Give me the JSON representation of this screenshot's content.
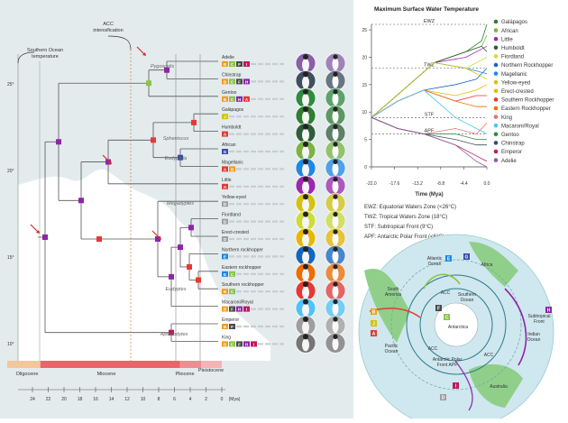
{
  "tree": {
    "y_ticks": [
      "25",
      "20",
      "15",
      "10"
    ],
    "southern_ocean_label": [
      "Southern Ocean",
      "temperature"
    ],
    "acc_label": [
      "ACC",
      "intensification"
    ],
    "genera": [
      "Pygoscelis",
      "Spheniscus",
      "Eudyptula",
      "Megadyptes",
      "Eudyptes",
      "Aptenodytes"
    ],
    "species": [
      {
        "name": "Adelie",
        "color": "#8a5fa8",
        "area": [
          "B",
          "C",
          "F",
          "I"
        ]
      },
      {
        "name": "Chinstrap",
        "color": "#3f4f5f",
        "area": [
          "B",
          "C",
          "F",
          "H"
        ]
      },
      {
        "name": "Gentoo",
        "color": "#2e8b3f",
        "area": [
          "B",
          "C",
          "H",
          "A"
        ]
      },
      {
        "name": "Galápagos",
        "color": "#2e7d32",
        "area": [
          "J"
        ]
      },
      {
        "name": "Humboldt",
        "color": "#2f5e3a",
        "area": [
          "A"
        ]
      },
      {
        "name": "African",
        "color": "#7cb342",
        "area": [
          "G"
        ]
      },
      {
        "name": "Magellanic",
        "color": "#1e88e5",
        "area": [
          "A",
          "B"
        ]
      },
      {
        "name": "Little",
        "color": "#9c27b0",
        "area": [
          "A"
        ]
      },
      {
        "name": "Yellow-eyed",
        "color": "#d4c20f",
        "area": [
          "D"
        ]
      },
      {
        "name": "Fiordland",
        "color": "#cddc39",
        "area": [
          "D"
        ]
      },
      {
        "name": "Erect-crested",
        "color": "#e6b800",
        "area": [
          "D"
        ]
      },
      {
        "name": "Northern rockhopper",
        "color": "#1565c0",
        "area": [
          "E"
        ]
      },
      {
        "name": "Eastern rockhopper",
        "color": "#ef6c00",
        "area": [
          "E",
          "C"
        ]
      },
      {
        "name": "Southern rockhopper",
        "color": "#e53935",
        "area": [
          "B",
          "C"
        ]
      },
      {
        "name": "Macaroni/Royal",
        "color": "#4fc3f7",
        "area": [
          "B",
          "F",
          "H",
          "I"
        ]
      },
      {
        "name": "Emperor",
        "color": "#9e9e9e",
        "area": [
          "B",
          "F"
        ]
      },
      {
        "name": "King",
        "color": "#757575",
        "area": [
          "B",
          "C",
          "F",
          "H",
          "I"
        ]
      }
    ],
    "epochs": [
      "Oligocene",
      "Miocene",
      "Pliocene",
      "Pleistocene"
    ],
    "time_ticks": [
      "24",
      "22",
      "20",
      "18",
      "16",
      "14",
      "12",
      "10",
      "8",
      "6",
      "4",
      "2",
      "0"
    ],
    "time_unit": "(Mya)"
  },
  "chart_data": {
    "type": "line",
    "title": "Maximum Surface Water Temperature",
    "xlabel": "Time (Mya)",
    "ylabel": "",
    "x_ticks": [
      "-22.0",
      "-17.6",
      "-13.2",
      "-8.8",
      "-4.4",
      "0.0"
    ],
    "xlim": [
      -22,
      0
    ],
    "ylim": [
      0,
      26
    ],
    "y_ticks": [
      0,
      5,
      10,
      15,
      20,
      25
    ],
    "reference_lines": [
      {
        "label": "EWZ",
        "value": 26
      },
      {
        "label": "TWZ",
        "value": 18
      },
      {
        "label": "STF",
        "value": 9
      },
      {
        "label": "APF",
        "value": 6
      }
    ],
    "series": [
      {
        "name": "Galápagos",
        "color": "#2e7d32",
        "points": [
          [
            -22,
            9
          ],
          [
            -16,
            14
          ],
          [
            -10,
            19
          ],
          [
            -4,
            21
          ],
          [
            -1,
            23
          ],
          [
            0,
            26
          ]
        ]
      },
      {
        "name": "African",
        "color": "#7cb342",
        "points": [
          [
            -22,
            9
          ],
          [
            -16,
            14
          ],
          [
            -10,
            19
          ],
          [
            -4,
            21
          ],
          [
            -1,
            22
          ],
          [
            0,
            24
          ]
        ]
      },
      {
        "name": "Little",
        "color": "#9c27b0",
        "points": [
          [
            -22,
            9
          ],
          [
            -16,
            14
          ],
          [
            -10,
            19
          ],
          [
            -4,
            20
          ],
          [
            0,
            22
          ]
        ]
      },
      {
        "name": "Humboldt",
        "color": "#2f5e3a",
        "points": [
          [
            -22,
            9
          ],
          [
            -16,
            14
          ],
          [
            -10,
            19
          ],
          [
            -4,
            21
          ],
          [
            -1,
            22
          ],
          [
            0,
            21
          ]
        ]
      },
      {
        "name": "Fiordland",
        "color": "#cddc39",
        "points": [
          [
            -22,
            9
          ],
          [
            -16,
            14
          ],
          [
            -10,
            19
          ],
          [
            -4,
            18
          ],
          [
            0,
            20
          ]
        ]
      },
      {
        "name": "Northern Rockhopper",
        "color": "#1565c0",
        "points": [
          [
            -22,
            9
          ],
          [
            -17,
            12
          ],
          [
            -12,
            14
          ],
          [
            -6,
            15
          ],
          [
            -2,
            16
          ],
          [
            0,
            18
          ]
        ]
      },
      {
        "name": "Magellanic",
        "color": "#1e88e5",
        "points": [
          [
            -22,
            9
          ],
          [
            -16,
            14
          ],
          [
            -10,
            19
          ],
          [
            -4,
            18
          ],
          [
            0,
            17
          ]
        ]
      },
      {
        "name": "Yellow-eyed",
        "color": "#d4c20f",
        "points": [
          [
            -22,
            9
          ],
          [
            -16,
            14
          ],
          [
            -10,
            19
          ],
          [
            -4,
            18
          ],
          [
            0,
            16
          ]
        ]
      },
      {
        "name": "Erect-crested",
        "color": "#e6b800",
        "points": [
          [
            -22,
            9
          ],
          [
            -17,
            12
          ],
          [
            -12,
            14
          ],
          [
            -6,
            13
          ],
          [
            -2,
            14
          ],
          [
            0,
            15
          ]
        ]
      },
      {
        "name": "Southern Rockhopper",
        "color": "#e53935",
        "points": [
          [
            -22,
            9
          ],
          [
            -17,
            12
          ],
          [
            -12,
            14
          ],
          [
            -6,
            12
          ],
          [
            -2,
            13
          ],
          [
            0,
            13
          ]
        ]
      },
      {
        "name": "Eastern Rockhopper",
        "color": "#ef6c00",
        "points": [
          [
            -22,
            9
          ],
          [
            -17,
            12
          ],
          [
            -12,
            14
          ],
          [
            -6,
            12
          ],
          [
            -2,
            11
          ],
          [
            0,
            11
          ]
        ]
      },
      {
        "name": "King",
        "color": "#e57373",
        "points": [
          [
            -22,
            9
          ],
          [
            -17,
            7
          ],
          [
            -12,
            6
          ],
          [
            -6,
            7
          ],
          [
            -2,
            6
          ],
          [
            0,
            8
          ]
        ]
      },
      {
        "name": "Macaroni/Royal",
        "color": "#4fc3f7",
        "points": [
          [
            -22,
            9
          ],
          [
            -17,
            12
          ],
          [
            -12,
            14
          ],
          [
            -6,
            9
          ],
          [
            -2,
            7
          ],
          [
            0,
            6
          ]
        ]
      },
      {
        "name": "Gentoo",
        "color": "#2e8b3f",
        "points": [
          [
            -22,
            9
          ],
          [
            -17,
            7
          ],
          [
            -12,
            6
          ],
          [
            -6,
            6
          ],
          [
            -2,
            5
          ],
          [
            0,
            5
          ]
        ]
      },
      {
        "name": "Chinstrap",
        "color": "#3f4f5f",
        "points": [
          [
            -22,
            9
          ],
          [
            -17,
            7
          ],
          [
            -12,
            6
          ],
          [
            -6,
            5
          ],
          [
            -2,
            4
          ],
          [
            0,
            4
          ]
        ]
      },
      {
        "name": "Emperor",
        "color": "#c2185b",
        "points": [
          [
            -22,
            9
          ],
          [
            -17,
            7
          ],
          [
            -12,
            6
          ],
          [
            -6,
            4
          ],
          [
            -2,
            2
          ],
          [
            0,
            1
          ]
        ]
      },
      {
        "name": "Adelie",
        "color": "#8a5fa8",
        "points": [
          [
            -22,
            9
          ],
          [
            -17,
            7
          ],
          [
            -12,
            6
          ],
          [
            -6,
            4
          ],
          [
            -2,
            1
          ],
          [
            0,
            0
          ]
        ]
      }
    ],
    "legend_position": "right"
  },
  "zone_notes": [
    "EWZ: Equatorial Waters Zone (<26°C)",
    "TWZ: Tropical Waters Zone (18°C)",
    "STF: Subtropical Front (9°C)",
    "APF: Antarctic Polar Front (<6°C)"
  ],
  "map": {
    "labels": {
      "atlantic": [
        "Atlantic",
        "Ocean"
      ],
      "africa": "Africa",
      "south_america": [
        "South",
        "America"
      ],
      "southern_ocean": [
        "Southern",
        "Ocean"
      ],
      "antarctica": "Antarctica",
      "subtropical_front": [
        "Subtropical",
        "Front"
      ],
      "indian_ocean": [
        "Indian",
        "Ocean"
      ],
      "pacific_ocean": [
        "Pacific",
        "Ocean"
      ],
      "apf": [
        "Antarctic Polar",
        "Front APF"
      ],
      "acc": "ACC",
      "australia": "Australia"
    },
    "region_letters": [
      "A",
      "B",
      "C",
      "D",
      "E",
      "F",
      "G",
      "H",
      "I",
      "J"
    ]
  }
}
